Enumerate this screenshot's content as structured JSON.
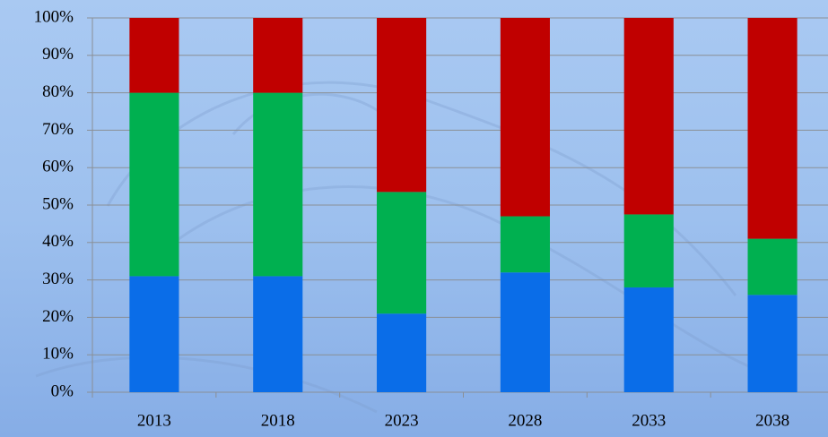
{
  "chart_data": {
    "type": "stacked_bar",
    "categories": [
      "2013",
      "2018",
      "2023",
      "2028",
      "2033",
      "2038"
    ],
    "series": [
      {
        "color": "#0a6de8",
        "values": [
          31,
          31,
          21,
          32,
          28,
          26
        ]
      },
      {
        "color": "#00b050",
        "values": [
          49,
          49,
          32.5,
          15,
          19.5,
          15
        ]
      },
      {
        "color": "#c00000",
        "values": [
          20,
          20,
          46.5,
          53,
          52.5,
          59
        ]
      }
    ],
    "ylim": [
      0,
      100
    ],
    "yticks": [
      {
        "value": 0,
        "label": "0%"
      },
      {
        "value": 10,
        "label": "10%"
      },
      {
        "value": 20,
        "label": "20%"
      },
      {
        "value": 30,
        "label": "30%"
      },
      {
        "value": 40,
        "label": "40%"
      },
      {
        "value": 50,
        "label": "50%"
      },
      {
        "value": 60,
        "label": "60%"
      },
      {
        "value": 70,
        "label": "70%"
      },
      {
        "value": 80,
        "label": "80%"
      },
      {
        "value": 90,
        "label": "90%"
      },
      {
        "value": 100,
        "label": "100%"
      }
    ],
    "grid": true
  }
}
